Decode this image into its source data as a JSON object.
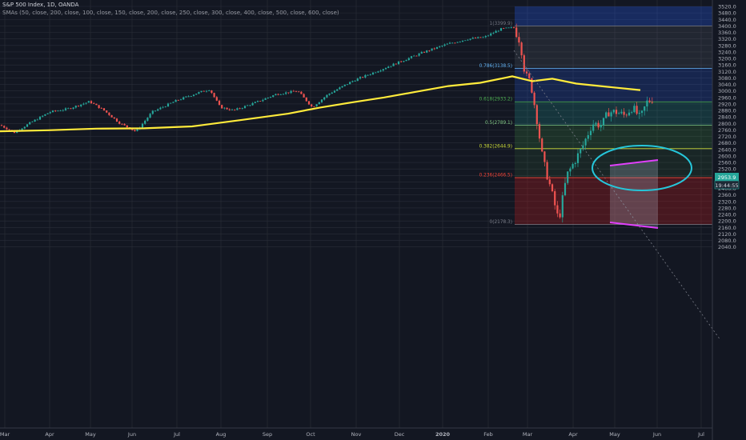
{
  "header": {
    "title": "S&P 500 Index, 1D, OANDA",
    "sma_legend": "SMAs (50, close, 200, close, 100, close, 150, close, 200, close, 250, close, 300, close, 400, close, 500, close, 600, close)"
  },
  "price_axis": {
    "ticks": [
      "3520.0",
      "3480.0",
      "3440.0",
      "3400.0",
      "3360.0",
      "3320.0",
      "3280.0",
      "3240.0",
      "3200.0",
      "3160.0",
      "3120.0",
      "3080.0",
      "3040.0",
      "3000.0",
      "2960.0",
      "2920.0",
      "2880.0",
      "2840.0",
      "2800.0",
      "2760.0",
      "2720.0",
      "2680.0",
      "2640.0",
      "2600.0",
      "2560.0",
      "2520.0",
      "2480.0",
      "2440.0",
      "2400.0",
      "2360.0",
      "2320.0",
      "2280.0",
      "2240.0",
      "2200.0",
      "2160.0",
      "2120.0",
      "2080.0",
      "2040.0"
    ],
    "last_price_label": "2953.9",
    "countdown_label": "19:44:55"
  },
  "time_axis": {
    "labels": [
      "Mar",
      "Apr",
      "May",
      "Jun",
      "Jul",
      "Aug",
      "Sep",
      "Oct",
      "Nov",
      "Dec",
      "2020",
      "Feb",
      "Mar",
      "Apr",
      "May",
      "Jun",
      "Jul"
    ]
  },
  "fibonacci": {
    "levels": [
      {
        "label": "1(3399.9)",
        "ratio": 1,
        "color": "#787b86"
      },
      {
        "label": "0.786(3138.5)",
        "ratio": 0.786,
        "color": "#64b5f6"
      },
      {
        "label": "0.618(2933.2)",
        "ratio": 0.618,
        "color": "#4caf50"
      },
      {
        "label": "0.5(2789.1)",
        "ratio": 0.5,
        "color": "#81c784"
      },
      {
        "label": "0.382(2644.9)",
        "ratio": 0.382,
        "color": "#cddc39"
      },
      {
        "label": "0.236(2466.5)",
        "ratio": 0.236,
        "color": "#f44336"
      },
      {
        "label": "0(2178.3)",
        "ratio": 0,
        "color": "#787b86"
      }
    ]
  },
  "colors": {
    "background": "#131722",
    "grid": "#2a2e39",
    "candle_up": "#26a69a",
    "candle_down": "#ef5350",
    "sma_line": "#ffeb3b",
    "ellipse": "#26c6da",
    "wedge": "#e040fb",
    "axis_text": "#b2b5be",
    "price_label_bg": "#26a69a"
  }
}
